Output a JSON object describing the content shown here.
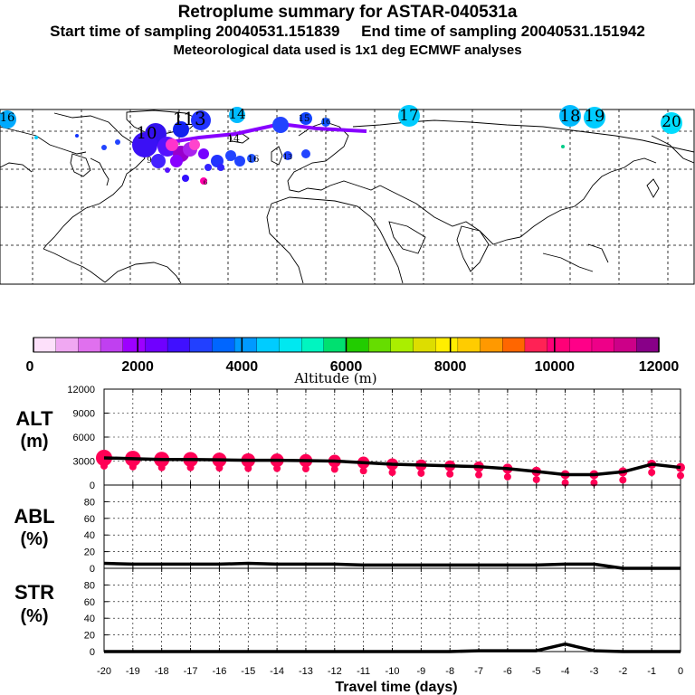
{
  "header": {
    "title": "Retroplume summary for ASTAR-040531a",
    "sampling_start": "Start time of sampling 20040531.151839",
    "sampling_end": "End time of sampling 20040531.151942",
    "met_data": "Meteorological data used is 1x1 deg ECMWF analyses"
  },
  "map": {
    "plume_labels": [
      {
        "text": "16",
        "color": "#00aaff"
      },
      {
        "text": "1",
        "color": "#1133ff"
      },
      {
        "text": "13",
        "color": "#1133ff"
      },
      {
        "text": "14",
        "color": "#00bbff"
      },
      {
        "text": "15",
        "color": "#1144ff"
      },
      {
        "text": "16",
        "color": "#1144ff"
      },
      {
        "text": "17",
        "color": "#00ccff"
      },
      {
        "text": "18",
        "color": "#00bbff"
      },
      {
        "text": "19",
        "color": "#00ccff"
      },
      {
        "text": "20",
        "color": "#00ddff"
      },
      {
        "text": "10",
        "color": "#3311ff"
      },
      {
        "text": "14",
        "color": "#1155ff"
      },
      {
        "text": "16",
        "color": "#2255ff"
      },
      {
        "text": "9",
        "color": "#5511ff"
      },
      {
        "text": "13",
        "color": "#1144ff"
      },
      {
        "text": "6",
        "color": "#ff00aa"
      }
    ]
  },
  "colorbar": {
    "label": "Altitude (m)",
    "tick_labels": [
      "0",
      "2000",
      "4000",
      "6000",
      "8000",
      "10000",
      "12000"
    ],
    "colors": [
      "#fde0fa",
      "#f0a8f2",
      "#e070ee",
      "#c040f0",
      "#9d00ff",
      "#7000ff",
      "#4010ff",
      "#2240ff",
      "#0066ff",
      "#0099ff",
      "#00ccff",
      "#00e8f0",
      "#00f5c0",
      "#00e070",
      "#22cc00",
      "#66dd00",
      "#aaee00",
      "#dddd00",
      "#ffee00",
      "#ffcc00",
      "#ff9900",
      "#ff6600",
      "#ff2255",
      "#ff0077",
      "#ff0088",
      "#ee0088",
      "#cc0088",
      "#880088"
    ]
  },
  "chart_data": [
    {
      "type": "line",
      "panel": "ALT",
      "ylabel": "ALT",
      "yunit": "(m)",
      "ylim": [
        0,
        12000
      ],
      "yticks": [
        "0",
        "3000",
        "6000",
        "9000",
        "12000"
      ],
      "x": [
        -20,
        -19,
        -18,
        -17,
        -16,
        -15,
        -14,
        -13,
        -12,
        -11,
        -10,
        -9,
        -8,
        -7,
        -6,
        -5,
        -4,
        -3,
        -2,
        -1,
        0
      ],
      "values": [
        3400,
        3300,
        3200,
        3200,
        3150,
        3100,
        3100,
        3050,
        3000,
        2800,
        2600,
        2500,
        2400,
        2300,
        2050,
        1700,
        1300,
        1300,
        1650,
        2600,
        2200
      ],
      "marker_color": "#ff0055"
    },
    {
      "type": "line",
      "panel": "ABL",
      "ylabel": "ABL",
      "yunit": "(%)",
      "ylim": [
        0,
        100
      ],
      "yticks": [
        "0",
        "20",
        "40",
        "60",
        "80"
      ],
      "x": [
        -20,
        -19,
        -18,
        -17,
        -16,
        -15,
        -14,
        -13,
        -12,
        -11,
        -10,
        -9,
        -8,
        -7,
        -6,
        -5,
        -4,
        -3,
        -2,
        -1,
        0
      ],
      "values": [
        6,
        5,
        5,
        5,
        5,
        6,
        5,
        5,
        5,
        4,
        4,
        4,
        4,
        4,
        4,
        4,
        5,
        5,
        0,
        0,
        0
      ]
    },
    {
      "type": "line",
      "panel": "STR",
      "ylabel": "STR",
      "yunit": "(%)",
      "ylim": [
        0,
        100
      ],
      "yticks": [
        "0",
        "20",
        "40",
        "60",
        "80"
      ],
      "x": [
        -20,
        -19,
        -18,
        -17,
        -16,
        -15,
        -14,
        -13,
        -12,
        -11,
        -10,
        -9,
        -8,
        -7,
        -6,
        -5,
        -4,
        -3,
        -2,
        -1,
        0
      ],
      "values": [
        0,
        0,
        0,
        0,
        0,
        0,
        0,
        0,
        0,
        0,
        0,
        0,
        0,
        1,
        1,
        1,
        9,
        1,
        0,
        0,
        0
      ]
    }
  ],
  "xaxis": {
    "label": "Travel time (days)",
    "tick_labels": [
      "-20",
      "-19",
      "-18",
      "-17",
      "-16",
      "-15",
      "-14",
      "-13",
      "-12",
      "-11",
      "-10",
      "-9",
      "-8",
      "-7",
      "-6",
      "-5",
      "-4",
      "-3",
      "-2",
      "-1",
      "0"
    ]
  }
}
